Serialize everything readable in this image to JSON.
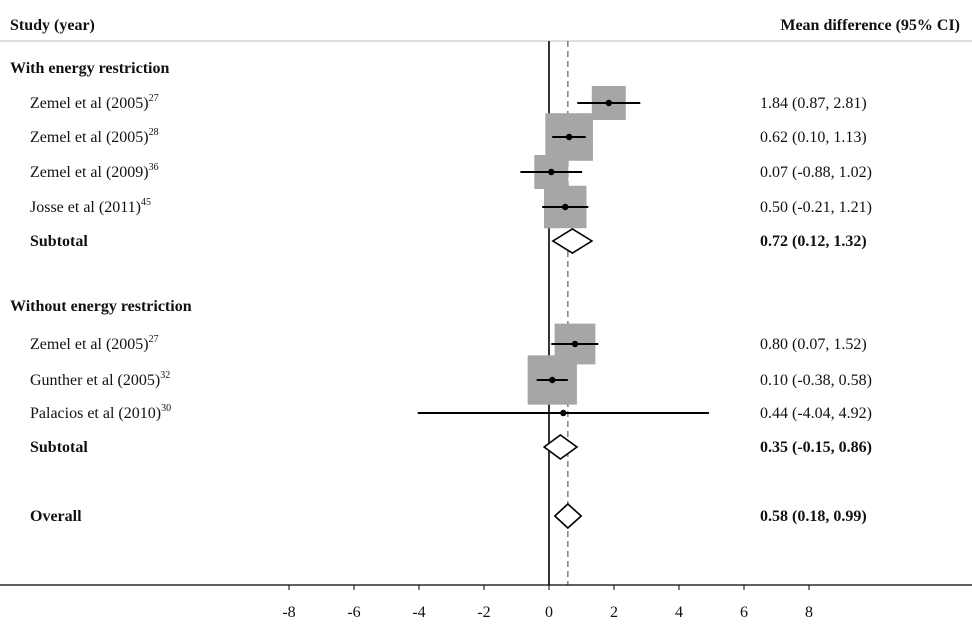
{
  "header": {
    "study_col": "Study (year)",
    "effect_col": "Mean difference (95% CI)"
  },
  "colors": {
    "box": "#a6a6a6",
    "line": "#000000",
    "dashed": "#777777"
  },
  "chart_data": {
    "type": "forest",
    "xlim": [
      -8,
      8
    ],
    "xticks": [
      "-8",
      "-6",
      "-4",
      "-2",
      "0",
      "2",
      "4",
      "6",
      "8"
    ],
    "reference_line": 0,
    "overall_line": 0.58,
    "groups": [
      {
        "label": "With energy restriction",
        "studies": [
          {
            "name": "Zemel et al (2005)",
            "ref": "27",
            "estimate": 1.84,
            "lower": 0.87,
            "upper": 2.81,
            "text": "1.84 (0.87, 2.81)",
            "weight": 1.0
          },
          {
            "name": "Zemel et al (2005)",
            "ref": "28",
            "estimate": 0.62,
            "lower": 0.1,
            "upper": 1.13,
            "text": "0.62 (0.10, 1.13)",
            "weight": 1.4
          },
          {
            "name": "Zemel et al (2009)",
            "ref": "36",
            "estimate": 0.07,
            "lower": -0.88,
            "upper": 1.02,
            "text": "0.07 (-0.88, 1.02)",
            "weight": 1.0
          },
          {
            "name": "Josse et al (2011)",
            "ref": "45",
            "estimate": 0.5,
            "lower": -0.21,
            "upper": 1.21,
            "text": "0.50 (-0.21, 1.21)",
            "weight": 1.25
          }
        ],
        "subtotal": {
          "label": "Subtotal",
          "estimate": 0.72,
          "lower": 0.12,
          "upper": 1.32,
          "text": "0.72 (0.12, 1.32)"
        }
      },
      {
        "label": "Without energy restriction",
        "studies": [
          {
            "name": "Zemel et al (2005)",
            "ref": "27",
            "estimate": 0.8,
            "lower": 0.07,
            "upper": 1.52,
            "text": "0.80 (0.07, 1.52)",
            "weight": 1.2
          },
          {
            "name": "Gunther et al (2005)",
            "ref": "32",
            "estimate": 0.1,
            "lower": -0.38,
            "upper": 0.58,
            "text": "0.10 (-0.38, 0.58)",
            "weight": 1.45
          },
          {
            "name": "Palacios et al (2010)",
            "ref": "30",
            "estimate": 0.44,
            "lower": -4.04,
            "upper": 4.92,
            "text": "0.44 (-4.04, 4.92)",
            "weight": 0.1
          }
        ],
        "subtotal": {
          "label": "Subtotal",
          "estimate": 0.35,
          "lower": -0.15,
          "upper": 0.86,
          "text": "0.35 (-0.15, 0.86)"
        }
      }
    ],
    "overall": {
      "label": "Overall",
      "estimate": 0.58,
      "lower": 0.18,
      "upper": 0.99,
      "text": "0.58 (0.18, 0.99)"
    }
  }
}
